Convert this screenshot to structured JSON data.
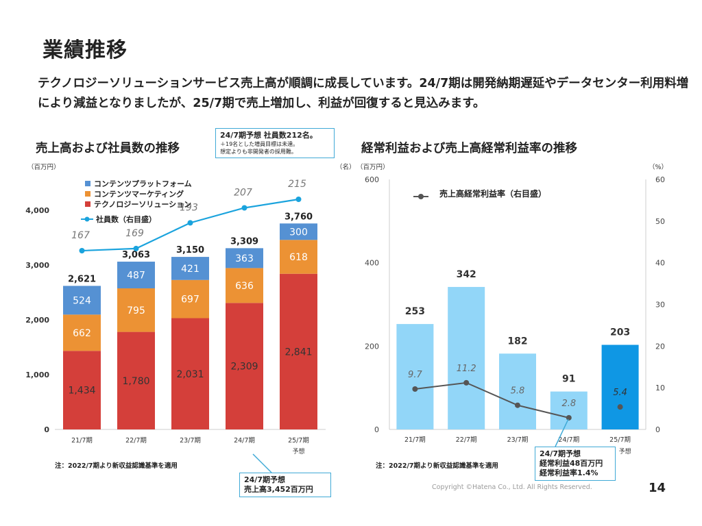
{
  "page": {
    "title": "業績推移",
    "description": "テクノロジーソリューションサービス売上高が順調に成長しています。24/7期は開発納期遅延やデータセンター利用料増により減益となりましたが、25/7期で売上増加し、利益が回復すると見込みます。",
    "copyright": "Copyright ©Hatena Co., Ltd. All Rights Reserved.",
    "page_number": "14"
  },
  "left": {
    "title": "売上高および社員数の推移",
    "unit_left": "（百万円）",
    "unit_right": "（名）",
    "note": "注：2022/7期より新収益認識基準を適用",
    "callout_top": {
      "line1": "24/7期予想 社員数212名。",
      "line2": "＋19名とした増員目標は未達。",
      "line3": "想定よりも非開発者の採用難。"
    },
    "callout_bottom": {
      "line1": "24/7期予想",
      "line2": "売上高3,452百万円"
    },
    "forecast_label": "予想"
  },
  "right": {
    "title": "経常利益および売上高経常利益率の推移",
    "unit_left": "（百万円）",
    "unit_right": "（%）",
    "note": "注：2022/7期より新収益認識基準を適用",
    "callout": {
      "line1": "24/7期予想",
      "line2": "経常利益48百万円",
      "line3": "経常利益率1.4%"
    },
    "forecast_label": "予想"
  },
  "chart_data": [
    {
      "type": "bar",
      "stacked": true,
      "title": "売上高および社員数の推移",
      "categories": [
        "21/7期",
        "22/7期",
        "23/7期",
        "24/7期",
        "25/7期"
      ],
      "ylim": [
        0,
        4000
      ],
      "yticks": [
        "0",
        "1,000",
        "2,000",
        "3,000",
        "4,000"
      ],
      "totals": [
        "2,621",
        "3,063",
        "3,150",
        "3,309",
        "3,760"
      ],
      "series": [
        {
          "name": "テクノロジーソリューション",
          "color": "#d43f3a",
          "values": [
            1434,
            1780,
            2031,
            2309,
            2841
          ],
          "labels": [
            "1,434",
            "1,780",
            "2,031",
            "2,309",
            "2,841"
          ]
        },
        {
          "name": "コンテンツマーケティング",
          "color": "#ec9234",
          "values": [
            662,
            795,
            697,
            636,
            618
          ],
          "labels": [
            "662",
            "795",
            "697",
            "636",
            "618"
          ]
        },
        {
          "name": "コンテンツプラットフォーム",
          "color": "#5591d3",
          "values": [
            524,
            487,
            421,
            363,
            300
          ],
          "labels": [
            "524",
            "487",
            "421",
            "363",
            "300"
          ]
        }
      ],
      "line": {
        "name": "社員数（右目盛）",
        "color": "#1aa3dd",
        "values": [
          167,
          169,
          193,
          207,
          215
        ]
      },
      "legend_placement": "top-left"
    },
    {
      "type": "bar",
      "title": "経常利益および売上高経常利益率の推移",
      "categories": [
        "21/7期",
        "22/7期",
        "23/7期",
        "24/7期",
        "25/7期"
      ],
      "ylim": [
        0,
        600
      ],
      "yticks": [
        "0",
        "200",
        "400",
        "600"
      ],
      "y2lim": [
        0,
        60
      ],
      "y2ticks": [
        "0",
        "10",
        "20",
        "30",
        "40",
        "50",
        "60"
      ],
      "bar_colors": [
        "#92d6f8",
        "#92d6f8",
        "#92d6f8",
        "#92d6f8",
        "#0f97e4"
      ],
      "values": [
        253,
        342,
        182,
        91,
        203
      ],
      "labels": [
        "253",
        "342",
        "182",
        "91",
        "203"
      ],
      "line": {
        "name": "売上高経常利益率（右目盛）",
        "color": "#555555",
        "values": [
          9.7,
          11.2,
          5.8,
          2.8,
          5.4
        ],
        "labels": [
          "9.7",
          "11.2",
          "5.8",
          "2.8",
          "5.4"
        ]
      },
      "legend_placement": "top-left"
    }
  ]
}
